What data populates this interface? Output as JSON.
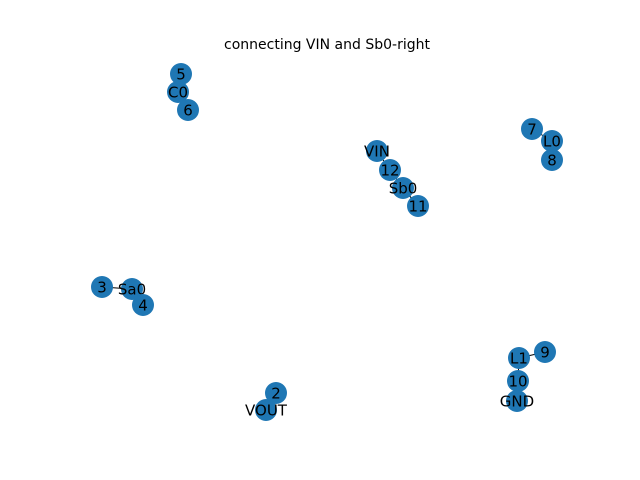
{
  "title": "connecting VIN and Sb0-right",
  "colors": {
    "node_fill": "#1f77b4",
    "edge": "#000000",
    "label": "#000000"
  },
  "nodes": [
    {
      "id": "5",
      "label": "5"
    },
    {
      "id": "C0",
      "label": "C0"
    },
    {
      "id": "6",
      "label": "6"
    },
    {
      "id": "VIN",
      "label": "VIN"
    },
    {
      "id": "12",
      "label": "12"
    },
    {
      "id": "Sb0",
      "label": "Sb0"
    },
    {
      "id": "11",
      "label": "11"
    },
    {
      "id": "7",
      "label": "7"
    },
    {
      "id": "L0",
      "label": "L0"
    },
    {
      "id": "8",
      "label": "8"
    },
    {
      "id": "3",
      "label": "3"
    },
    {
      "id": "Sa0",
      "label": "Sa0"
    },
    {
      "id": "4",
      "label": "4"
    },
    {
      "id": "9",
      "label": "9"
    },
    {
      "id": "L1",
      "label": "L1"
    },
    {
      "id": "10",
      "label": "10"
    },
    {
      "id": "GND",
      "label": "GND"
    },
    {
      "id": "2",
      "label": "2"
    },
    {
      "id": "VOUT",
      "label": "VOUT"
    }
  ],
  "edges": [
    [
      "5",
      "C0"
    ],
    [
      "C0",
      "6"
    ],
    [
      "VIN",
      "12"
    ],
    [
      "12",
      "Sb0"
    ],
    [
      "Sb0",
      "11"
    ],
    [
      "7",
      "L0"
    ],
    [
      "L0",
      "8"
    ],
    [
      "3",
      "Sa0"
    ],
    [
      "Sa0",
      "4"
    ],
    [
      "9",
      "L1"
    ],
    [
      "L1",
      "10"
    ],
    [
      "10",
      "GND"
    ],
    [
      "2",
      "VOUT"
    ]
  ]
}
